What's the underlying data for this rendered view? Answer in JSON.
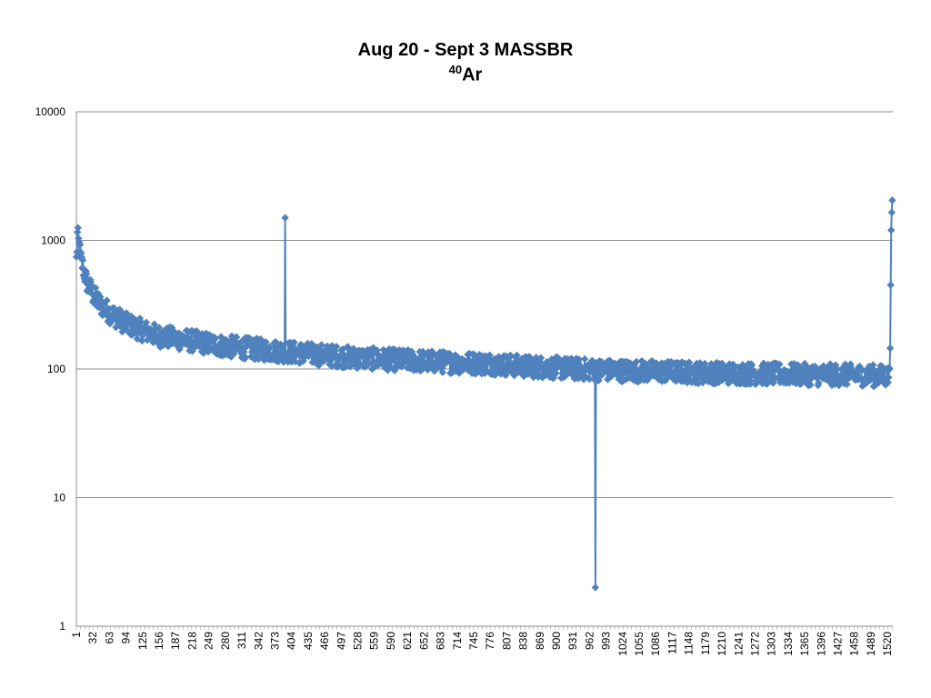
{
  "chart_data": {
    "type": "line",
    "title": "Aug 20 - Sept 3 MASSBR",
    "subtitle_superscript": "40",
    "subtitle_text": "Ar",
    "xlabel": "",
    "ylabel": "",
    "y_scale": "log",
    "ylim": [
      1,
      10000
    ],
    "yticks": [
      1,
      10,
      100,
      1000,
      10000
    ],
    "ytick_labels": [
      "1",
      "10",
      "100",
      "1000",
      "10000"
    ],
    "x_range": [
      1,
      1530
    ],
    "x_tick_labels": [
      "1",
      "32",
      "63",
      "94",
      "125",
      "156",
      "187",
      "218",
      "249",
      "280",
      "311",
      "342",
      "373",
      "404",
      "435",
      "466",
      "497",
      "528",
      "559",
      "590",
      "621",
      "652",
      "683",
      "714",
      "745",
      "776",
      "807",
      "838",
      "869",
      "900",
      "931",
      "962",
      "993",
      "1024",
      "1055",
      "1086",
      "1117",
      "1148",
      "1179",
      "1210",
      "1241",
      "1272",
      "1303",
      "1334",
      "1365",
      "1396",
      "1427",
      "1458",
      "1489",
      "1520"
    ],
    "grid": "horizontal",
    "legend": "none",
    "series_color": "#4F81BD",
    "marker": "diamond",
    "trend_points": [
      {
        "x": 1,
        "y": 700
      },
      {
        "x": 3,
        "y": 1100
      },
      {
        "x": 10,
        "y": 700
      },
      {
        "x": 20,
        "y": 480
      },
      {
        "x": 32,
        "y": 380
      },
      {
        "x": 45,
        "y": 320
      },
      {
        "x": 63,
        "y": 275
      },
      {
        "x": 94,
        "y": 225
      },
      {
        "x": 125,
        "y": 200
      },
      {
        "x": 156,
        "y": 180
      },
      {
        "x": 218,
        "y": 165
      },
      {
        "x": 280,
        "y": 150
      },
      {
        "x": 342,
        "y": 142
      },
      {
        "x": 404,
        "y": 135
      },
      {
        "x": 466,
        "y": 128
      },
      {
        "x": 528,
        "y": 122
      },
      {
        "x": 590,
        "y": 118
      },
      {
        "x": 652,
        "y": 115
      },
      {
        "x": 714,
        "y": 112
      },
      {
        "x": 776,
        "y": 110
      },
      {
        "x": 838,
        "y": 105
      },
      {
        "x": 900,
        "y": 102
      },
      {
        "x": 962,
        "y": 99
      },
      {
        "x": 1024,
        "y": 97
      },
      {
        "x": 1086,
        "y": 96
      },
      {
        "x": 1148,
        "y": 94
      },
      {
        "x": 1210,
        "y": 93
      },
      {
        "x": 1272,
        "y": 92
      },
      {
        "x": 1334,
        "y": 91
      },
      {
        "x": 1396,
        "y": 90
      },
      {
        "x": 1458,
        "y": 90
      },
      {
        "x": 1520,
        "y": 88
      }
    ],
    "spikes": [
      {
        "x": 392,
        "y": 1500
      },
      {
        "x": 973,
        "y": 2
      }
    ],
    "end_points": [
      {
        "x": 1524,
        "y": 100
      },
      {
        "x": 1525,
        "y": 145
      },
      {
        "x": 1526,
        "y": 450
      },
      {
        "x": 1527,
        "y": 1200
      },
      {
        "x": 1528,
        "y": 1650
      },
      {
        "x": 1529,
        "y": 2050
      }
    ]
  }
}
